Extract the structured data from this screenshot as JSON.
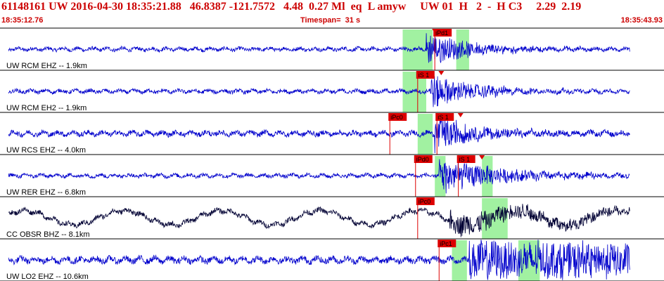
{
  "header": {
    "title": "61148161 UW 2016-04-30 18:35:21.88   46.8387 -121.7572   4.48  0.27 Ml  eq  L amyw     UW 01  H   2  -  H C3     2.29  2.19",
    "time_start": "18:35:12.76",
    "timespan_label": "Timespan=  31 s",
    "time_end": "18:35:43.93"
  },
  "colors": {
    "header_text": "#cc0000",
    "trace_blue": "#0000cc",
    "trace_black": "#000033",
    "pick_red": "#dd0000",
    "window_green": "#90ee90",
    "separator": "#000000"
  },
  "chart_data": {
    "type": "seismogram",
    "time_start": "18:35:12.76",
    "time_end": "18:35:43.93",
    "timespan_s": 31,
    "traces": [
      {
        "label": "UW RCM EHZ --  1.9km",
        "color": "blue",
        "picks": [
          {
            "label": "iPd1",
            "time_s": 20.3
          }
        ],
        "arrival_marker_time_s": 20.3,
        "windows_s": [
          [
            18.8,
            20.2
          ],
          [
            21.3,
            21.9
          ]
        ],
        "noise": 0.09,
        "burst_start_s": 19.9,
        "burst_amp": 0.85,
        "burst_decay_s": 2.2
      },
      {
        "label": "UW RCM EH2 --  1.9km",
        "color": "blue",
        "picks": [
          {
            "label": "iS 1",
            "time_s": 19.5
          }
        ],
        "arrival_marker_time_s": 20.6,
        "windows_s": [
          [
            18.8,
            19.9
          ]
        ],
        "noise": 0.09,
        "burst_start_s": 20.1,
        "burst_amp": 0.85,
        "burst_decay_s": 2.2
      },
      {
        "label": "UW RCS EHZ --  4.0km",
        "color": "blue",
        "picks": [
          {
            "label": "iPc0",
            "time_s": 18.2
          },
          {
            "label": "iS 1",
            "time_s": 20.4
          }
        ],
        "arrival_marker_time_s": 21.5,
        "windows_s": [
          [
            19.5,
            20.2
          ]
        ],
        "noise": 0.12,
        "burst_start_s": 20.3,
        "burst_amp": 0.9,
        "burst_decay_s": 2.0
      },
      {
        "label": "UW RER EHZ --  6.8km",
        "color": "blue",
        "picks": [
          {
            "label": "iPd0",
            "time_s": 19.4
          },
          {
            "label": "iS 1",
            "time_s": 21.4
          }
        ],
        "arrival_marker_time_s": 22.5,
        "windows_s": [
          [
            20.3,
            20.8
          ],
          [
            22.5,
            23.0
          ]
        ],
        "noise": 0.09,
        "burst_start_s": 20.5,
        "burst_amp": 0.9,
        "burst_decay_s": 3.0
      },
      {
        "label": "CC OBSR BHZ --  8.1km",
        "color": "black",
        "picks": [
          {
            "label": "iPc0",
            "time_s": 19.5
          }
        ],
        "arrival_marker_time_s": null,
        "windows_s": [
          [
            22.5,
            23.7
          ]
        ],
        "noise": 0.12,
        "burst_start_s": 21.0,
        "burst_amp": 0.55,
        "burst_decay_s": 7.0,
        "long_period_amp": 0.35,
        "long_period_s": 4.6
      },
      {
        "label": "UW LO2 EHZ -- 10.6km",
        "color": "blue",
        "picks": [
          {
            "label": "iPc1",
            "time_s": 20.5
          }
        ],
        "arrival_marker_time_s": null,
        "windows_s": [
          [
            21.1,
            21.8
          ],
          [
            24.2,
            25.2
          ]
        ],
        "noise": 0.15,
        "burst_start_s": 21.9,
        "burst_amp": 0.95,
        "burst_decay_s": 30.0,
        "sustained_amp": 0.6
      }
    ]
  }
}
